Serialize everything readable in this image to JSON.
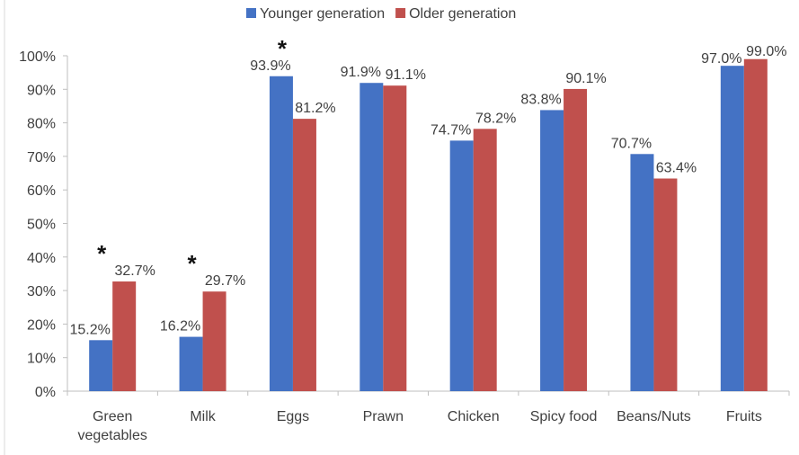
{
  "chart_data": {
    "type": "bar",
    "categories": [
      "Green vegetables",
      "Milk",
      "Eggs",
      "Prawn",
      "Chicken",
      "Spicy food",
      "Beans/Nuts",
      "Fruits"
    ],
    "category_lines": [
      [
        "Green",
        "vegetables"
      ],
      [
        "Milk"
      ],
      [
        "Eggs"
      ],
      [
        "Prawn"
      ],
      [
        "Chicken"
      ],
      [
        "Spicy food"
      ],
      [
        "Beans/Nuts"
      ],
      [
        "Fruits"
      ]
    ],
    "series": [
      {
        "name": "Younger generation",
        "color": "#4472C4",
        "values": [
          15.2,
          16.2,
          93.9,
          91.9,
          74.7,
          83.8,
          70.7,
          97.0
        ],
        "labels": [
          "15.2%",
          "16.2%",
          "93.9%",
          "91.9%",
          "74.7%",
          "83.8%",
          "70.7%",
          "97.0%"
        ]
      },
      {
        "name": "Older generation",
        "color": "#C0504D",
        "values": [
          32.7,
          29.7,
          81.2,
          91.1,
          78.2,
          90.1,
          63.4,
          99.0
        ],
        "labels": [
          "32.7%",
          "29.7%",
          "81.2%",
          "91.1%",
          "78.2%",
          "90.1%",
          "63.4%",
          "99.0%"
        ]
      }
    ],
    "significance_marker": "*",
    "significant_categories": [
      0,
      1,
      2
    ],
    "yticks": [
      "0%",
      "10%",
      "20%",
      "30%",
      "40%",
      "50%",
      "60%",
      "70%",
      "80%",
      "90%",
      "100%"
    ],
    "ylim": [
      0,
      100
    ],
    "legend_position": "top-center",
    "grid": false
  }
}
